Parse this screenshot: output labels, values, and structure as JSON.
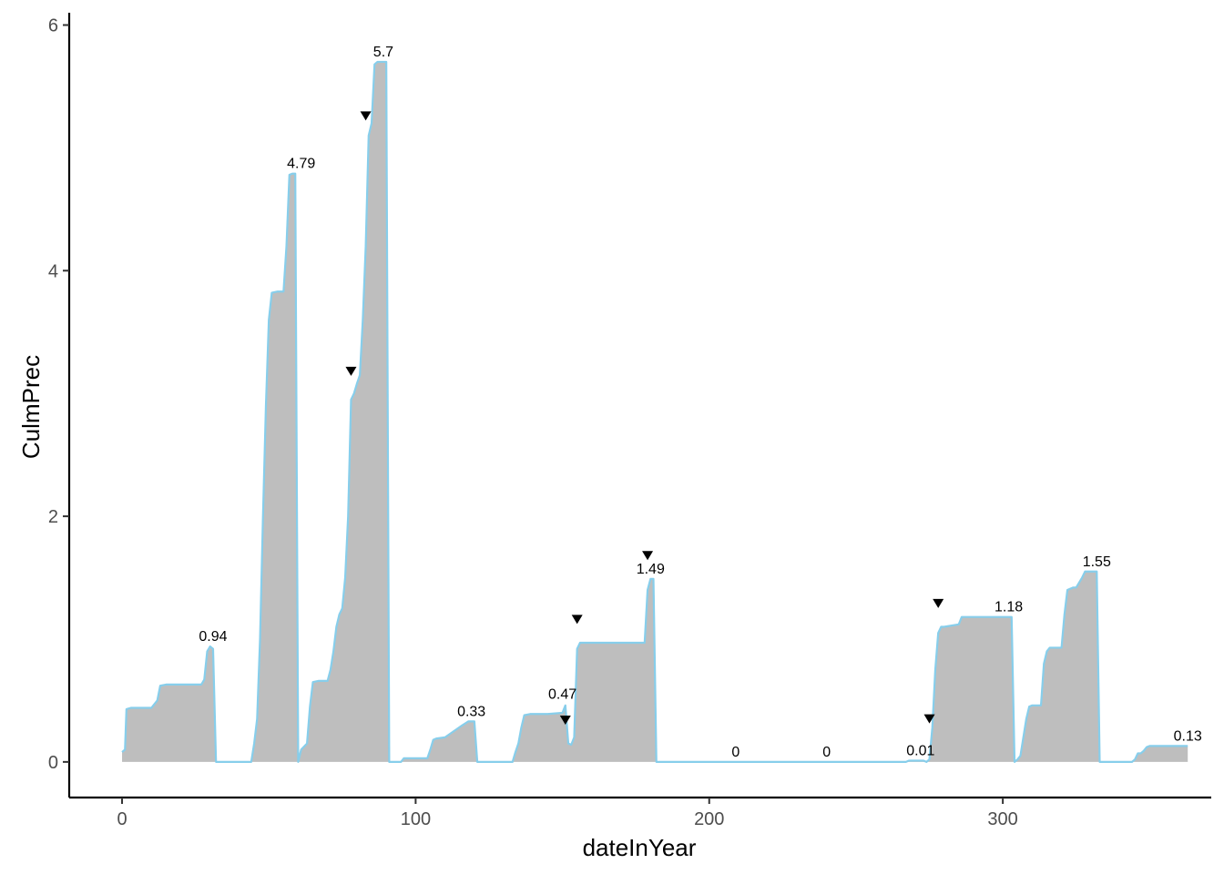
{
  "chart_data": {
    "type": "area",
    "xlabel": "dateInYear",
    "ylabel": "CulmPrec",
    "xlim": [
      -18,
      371
    ],
    "ylim": [
      -0.29,
      6.1
    ],
    "x_ticks": [
      0,
      100,
      200,
      300
    ],
    "y_ticks": [
      0,
      2,
      4,
      6
    ],
    "grid": false,
    "legend": "none",
    "colors": {
      "area_fill": "#bebebe",
      "line": "#87ceeb",
      "marker": "#000000",
      "axis": "#000000"
    },
    "series": [
      {
        "values": [
          [
            0,
            0.08
          ],
          [
            1,
            0.1
          ],
          [
            1.5,
            0.43
          ],
          [
            3,
            0.44
          ],
          [
            10,
            0.44
          ],
          [
            11,
            0.47
          ],
          [
            12,
            0.5
          ],
          [
            13,
            0.62
          ],
          [
            15,
            0.63
          ],
          [
            27,
            0.63
          ],
          [
            28,
            0.67
          ],
          [
            29,
            0.9
          ],
          [
            30,
            0.94
          ],
          [
            31,
            0.92
          ],
          [
            32,
            0
          ],
          [
            44,
            0
          ],
          [
            45,
            0.15
          ],
          [
            46,
            0.35
          ],
          [
            47,
            1.0
          ],
          [
            48,
            2.0
          ],
          [
            49,
            2.9
          ],
          [
            50,
            3.6
          ],
          [
            51,
            3.82
          ],
          [
            53,
            3.83
          ],
          [
            55,
            3.83
          ],
          [
            56,
            4.2
          ],
          [
            57,
            4.78
          ],
          [
            58,
            4.79
          ],
          [
            59,
            4.79
          ],
          [
            60,
            0
          ],
          [
            61,
            0.1
          ],
          [
            63,
            0.15
          ],
          [
            64,
            0.45
          ],
          [
            65,
            0.65
          ],
          [
            67,
            0.66
          ],
          [
            70,
            0.66
          ],
          [
            71,
            0.75
          ],
          [
            72,
            0.9
          ],
          [
            73,
            1.1
          ],
          [
            74,
            1.2
          ],
          [
            75,
            1.25
          ],
          [
            76,
            1.5
          ],
          [
            77,
            2.0
          ],
          [
            78,
            2.95
          ],
          [
            79,
            3.0
          ],
          [
            80,
            3.08
          ],
          [
            81,
            3.15
          ],
          [
            82,
            3.6
          ],
          [
            83,
            4.2
          ],
          [
            84,
            5.1
          ],
          [
            85,
            5.2
          ],
          [
            86,
            5.68
          ],
          [
            87,
            5.7
          ],
          [
            90,
            5.7
          ],
          [
            91,
            0
          ],
          [
            95,
            0
          ],
          [
            96,
            0.03
          ],
          [
            100,
            0.03
          ],
          [
            101,
            0.03
          ],
          [
            102,
            0.03
          ],
          [
            103,
            0.03
          ],
          [
            104,
            0.03
          ],
          [
            105,
            0.1
          ],
          [
            106,
            0.18
          ],
          [
            107,
            0.19
          ],
          [
            110,
            0.2
          ],
          [
            113,
            0.25
          ],
          [
            116,
            0.3
          ],
          [
            118,
            0.33
          ],
          [
            120,
            0.33
          ],
          [
            121,
            0
          ],
          [
            133,
            0
          ],
          [
            134,
            0.08
          ],
          [
            135,
            0.15
          ],
          [
            136,
            0.28
          ],
          [
            137,
            0.38
          ],
          [
            139,
            0.39
          ],
          [
            145,
            0.39
          ],
          [
            150,
            0.4
          ],
          [
            151,
            0.46
          ],
          [
            152,
            0.15
          ],
          [
            153,
            0.14
          ],
          [
            154,
            0.2
          ],
          [
            155,
            0.92
          ],
          [
            156,
            0.97
          ],
          [
            160,
            0.97
          ],
          [
            175,
            0.97
          ],
          [
            178,
            0.97
          ],
          [
            179,
            1.4
          ],
          [
            180,
            1.49
          ],
          [
            181,
            1.49
          ],
          [
            182,
            0
          ],
          [
            200,
            0
          ],
          [
            230,
            0
          ],
          [
            260,
            0
          ],
          [
            267,
            0
          ],
          [
            268,
            0.01
          ],
          [
            272,
            0.01
          ],
          [
            273,
            0.01
          ],
          [
            274,
            0
          ],
          [
            275,
            0.02
          ],
          [
            276,
            0.28
          ],
          [
            277,
            0.75
          ],
          [
            278,
            1.05
          ],
          [
            279,
            1.1
          ],
          [
            280,
            1.1
          ],
          [
            285,
            1.12
          ],
          [
            286,
            1.18
          ],
          [
            290,
            1.18
          ],
          [
            295,
            1.18
          ],
          [
            303,
            1.18
          ],
          [
            304,
            0
          ],
          [
            305,
            0.02
          ],
          [
            306,
            0.05
          ],
          [
            307,
            0.2
          ],
          [
            308,
            0.35
          ],
          [
            309,
            0.45
          ],
          [
            310,
            0.46
          ],
          [
            313,
            0.46
          ],
          [
            314,
            0.8
          ],
          [
            315,
            0.9
          ],
          [
            316,
            0.93
          ],
          [
            319,
            0.93
          ],
          [
            320,
            0.93
          ],
          [
            321,
            1.2
          ],
          [
            322,
            1.4
          ],
          [
            324,
            1.42
          ],
          [
            325,
            1.42
          ],
          [
            327,
            1.5
          ],
          [
            328,
            1.55
          ],
          [
            332,
            1.55
          ],
          [
            333,
            0
          ],
          [
            344,
            0
          ],
          [
            345,
            0.02
          ],
          [
            346,
            0.07
          ],
          [
            347,
            0.07
          ],
          [
            348,
            0.09
          ],
          [
            349,
            0.12
          ],
          [
            350,
            0.13
          ],
          [
            355,
            0.13
          ],
          [
            362,
            0.13
          ],
          [
            363,
            0.13
          ]
        ]
      }
    ],
    "annotations": [
      {
        "x": 31,
        "y": 0.94,
        "text": "0.94"
      },
      {
        "x": 61,
        "y": 4.79,
        "text": "4.79"
      },
      {
        "x": 89,
        "y": 5.7,
        "text": "5.7"
      },
      {
        "x": 119,
        "y": 0.33,
        "text": "0.33"
      },
      {
        "x": 150,
        "y": 0.47,
        "text": "0.47"
      },
      {
        "x": 180,
        "y": 1.49,
        "text": "1.49"
      },
      {
        "x": 209,
        "y": 0,
        "text": "0"
      },
      {
        "x": 240,
        "y": 0,
        "text": "0"
      },
      {
        "x": 272,
        "y": 0.01,
        "text": "0.01"
      },
      {
        "x": 302,
        "y": 1.18,
        "text": "1.18"
      },
      {
        "x": 332,
        "y": 1.55,
        "text": "1.55"
      },
      {
        "x": 363,
        "y": 0.13,
        "text": "0.13"
      }
    ],
    "markers": [
      {
        "x": 78,
        "y": 3.18
      },
      {
        "x": 83,
        "y": 5.26
      },
      {
        "x": 151,
        "y": 0.34
      },
      {
        "x": 155,
        "y": 1.16
      },
      {
        "x": 179,
        "y": 1.68
      },
      {
        "x": 275,
        "y": 0.35
      },
      {
        "x": 278,
        "y": 1.29
      }
    ]
  }
}
